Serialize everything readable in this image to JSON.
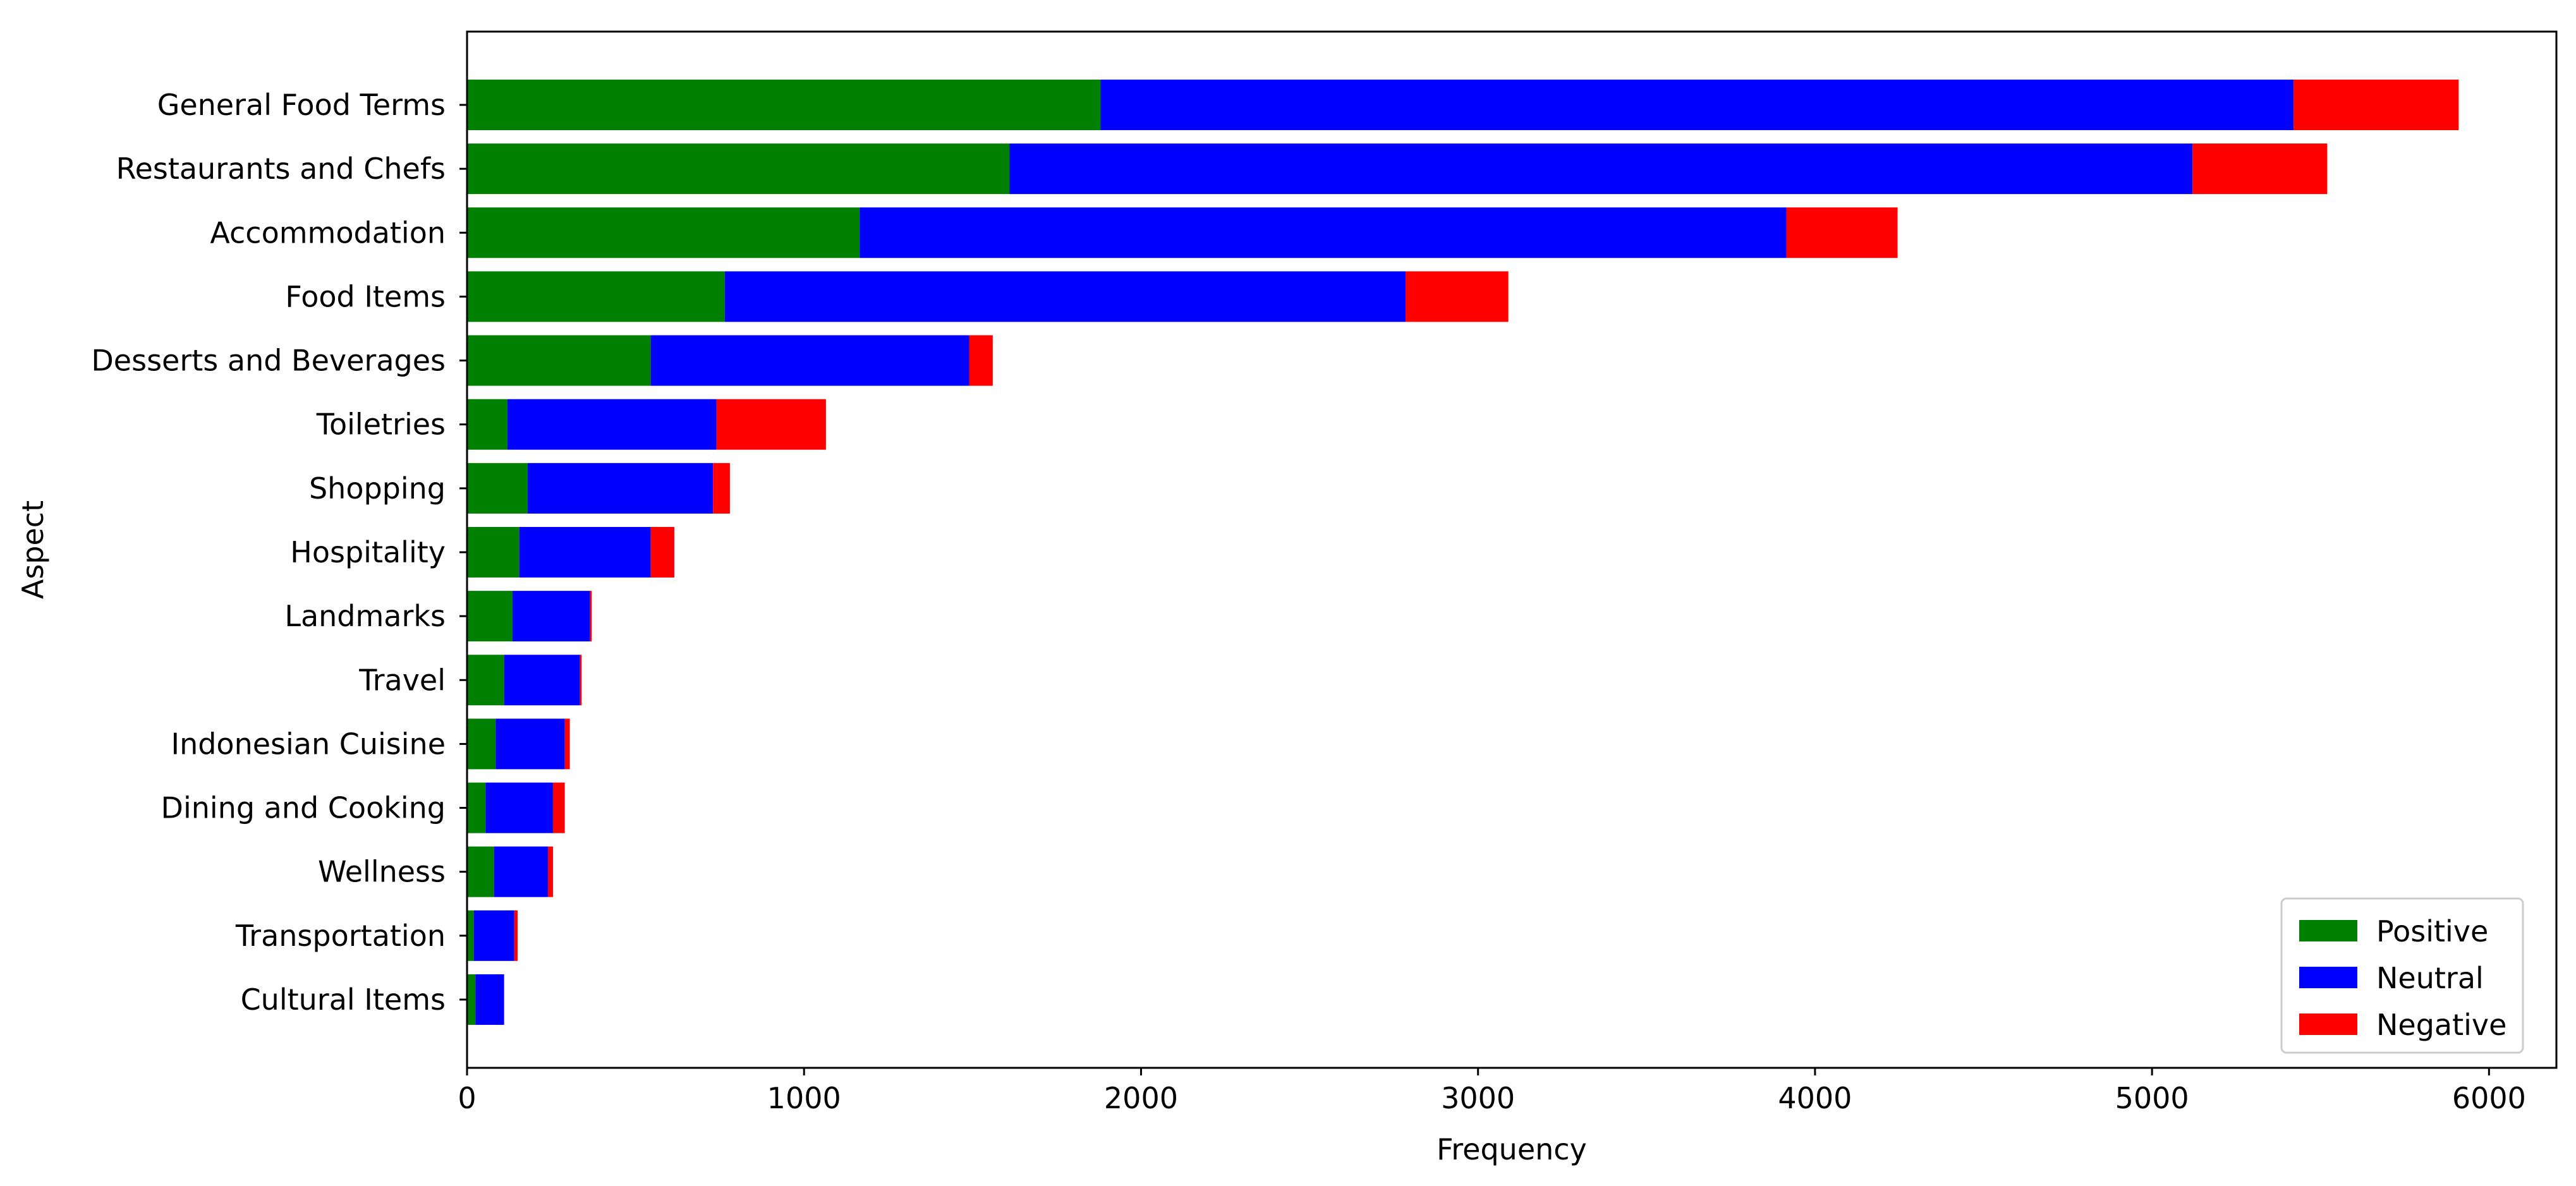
{
  "chart_data": {
    "type": "bar",
    "orientation": "horizontal",
    "stacked": true,
    "categories": [
      "General Food Terms",
      "Restaurants and Chefs",
      "Accommodation",
      "Food Items",
      "Desserts and Beverages",
      "Toiletries",
      "Shopping",
      "Hospitality",
      "Landmarks",
      "Travel",
      "Indonesian Cuisine",
      "Dining and Cooking",
      "Wellness",
      "Transportation",
      "Cultural Items"
    ],
    "series": [
      {
        "name": "Positive",
        "color": "#008000",
        "values": [
          1880,
          1610,
          1165,
          765,
          545,
          120,
          180,
          155,
          135,
          110,
          85,
          55,
          80,
          20,
          25
        ]
      },
      {
        "name": "Neutral",
        "color": "#0000ff",
        "values": [
          3540,
          3510,
          2750,
          2020,
          945,
          620,
          550,
          390,
          230,
          225,
          205,
          200,
          160,
          120,
          85
        ]
      },
      {
        "name": "Negative",
        "color": "#ff0000",
        "values": [
          490,
          400,
          330,
          305,
          70,
          325,
          50,
          70,
          5,
          5,
          15,
          35,
          15,
          10,
          0
        ]
      }
    ],
    "xlabel": "Frequency",
    "ylabel": "Aspect",
    "xlim": [
      0,
      6200
    ],
    "xticks": [
      0,
      1000,
      2000,
      3000,
      4000,
      5000,
      6000
    ],
    "xtick_labels": [
      "0",
      "1000",
      "2000",
      "3000",
      "4000",
      "5000",
      "6000"
    ],
    "grid": false,
    "legend_position": "lower-right"
  }
}
